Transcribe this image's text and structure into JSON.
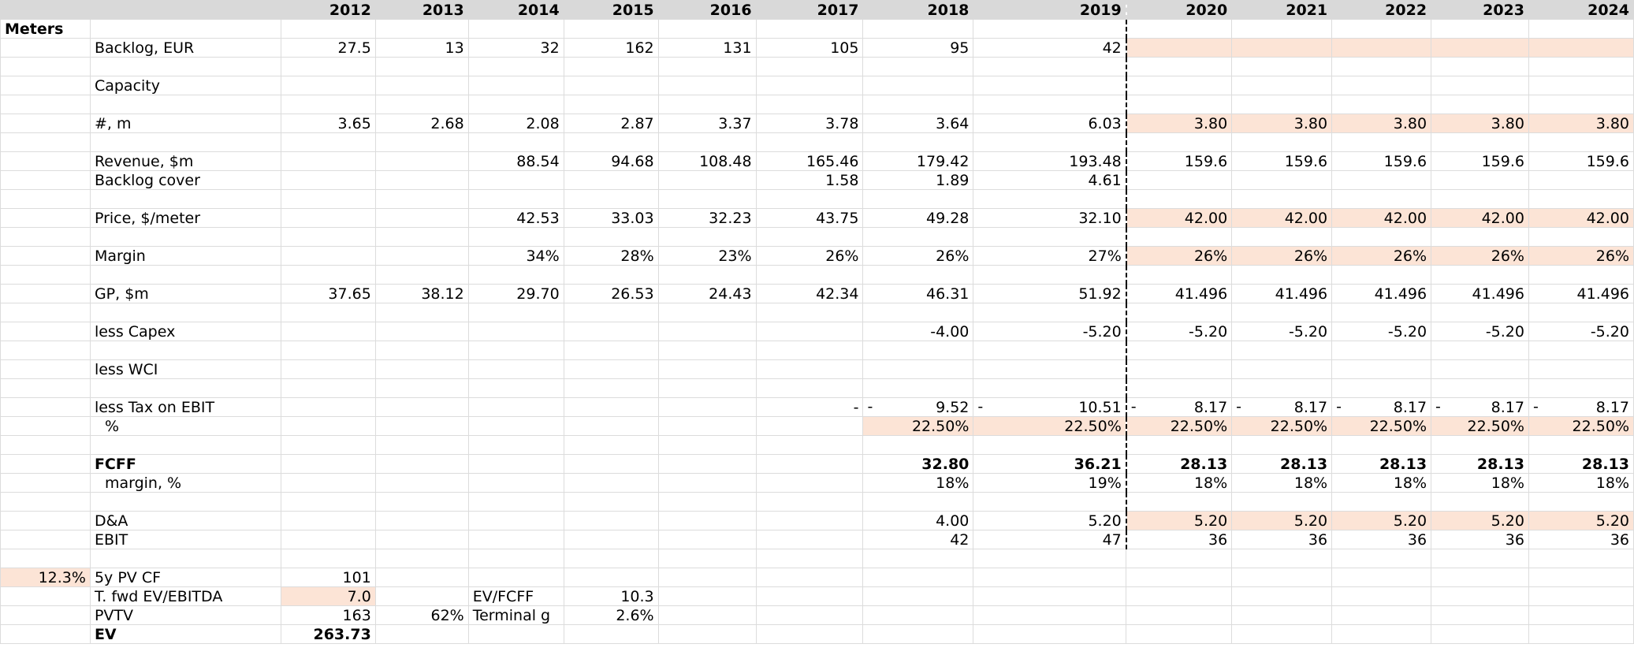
{
  "header": {
    "years": [
      "2012",
      "2013",
      "2014",
      "2015",
      "2016",
      "2017",
      "2018",
      "2019",
      "2020",
      "2021",
      "2022",
      "2023",
      "2024"
    ]
  },
  "section": {
    "meters": "Meters"
  },
  "backlog": {
    "label": "Backlog, EUR",
    "values": [
      "27.5",
      "13",
      "32",
      "162",
      "131",
      "105",
      "95",
      "42"
    ]
  },
  "capacity": {
    "label": "Capacity"
  },
  "count": {
    "label": "#, m",
    "values": [
      "3.65",
      "2.68",
      "2.08",
      "2.87",
      "3.37",
      "3.78",
      "3.64",
      "6.03",
      "3.80",
      "3.80",
      "3.80",
      "3.80",
      "3.80"
    ]
  },
  "revenue": {
    "label": "Revenue, $m",
    "values": [
      "88.54",
      "94.68",
      "108.48",
      "165.46",
      "179.42",
      "193.48",
      "159.6",
      "159.6",
      "159.6",
      "159.6",
      "159.6"
    ]
  },
  "backlog_cover": {
    "label": "Backlog cover",
    "values": [
      "1.58",
      "1.89",
      "4.61"
    ]
  },
  "price": {
    "label": "Price, $/meter",
    "values": [
      "42.53",
      "33.03",
      "32.23",
      "43.75",
      "49.28",
      "32.10",
      "42.00",
      "42.00",
      "42.00",
      "42.00",
      "42.00"
    ]
  },
  "margin": {
    "label": "Margin",
    "values": [
      "34%",
      "28%",
      "23%",
      "26%",
      "26%",
      "27%",
      "26%",
      "26%",
      "26%",
      "26%",
      "26%"
    ]
  },
  "gp": {
    "label": "GP, $m",
    "values": [
      "37.65",
      "38.12",
      "29.70",
      "26.53",
      "24.43",
      "42.34",
      "46.31",
      "51.92",
      "41.496",
      "41.496",
      "41.496",
      "41.496",
      "41.496"
    ]
  },
  "capex": {
    "label": "less Capex",
    "values": [
      "-4.00",
      "-5.20",
      "-5.20",
      "-5.20",
      "-5.20",
      "-5.20",
      "-5.20"
    ]
  },
  "wci": {
    "label": "less WCI"
  },
  "tax": {
    "label": "less Tax on EBIT",
    "dash": "-",
    "y2017": "-",
    "values": [
      "9.52",
      "10.51",
      "8.17",
      "8.17",
      "8.17",
      "8.17",
      "8.17"
    ]
  },
  "tax_pct": {
    "label": "%",
    "values": [
      "22.50%",
      "22.50%",
      "22.50%",
      "22.50%",
      "22.50%",
      "22.50%",
      "22.50%"
    ]
  },
  "fcff": {
    "label": "FCFF",
    "values": [
      "32.80",
      "36.21",
      "28.13",
      "28.13",
      "28.13",
      "28.13",
      "28.13"
    ]
  },
  "fcff_margin": {
    "label": "margin, %",
    "values": [
      "18%",
      "19%",
      "18%",
      "18%",
      "18%",
      "18%",
      "18%"
    ]
  },
  "da": {
    "label": "D&A",
    "values": [
      "4.00",
      "5.20",
      "5.20",
      "5.20",
      "5.20",
      "5.20",
      "5.20"
    ]
  },
  "ebit": {
    "label": "EBIT",
    "values": [
      "42",
      "47",
      "36",
      "36",
      "36",
      "36",
      "36"
    ]
  },
  "valuation": {
    "discount_rate": "12.3%",
    "pv_cf_label": "5y PV CF",
    "pv_cf_value": "101",
    "multiple_label": "T. fwd EV/EBITDA",
    "multiple_value": "7.0",
    "ev_fcff_label": "EV/FCFF",
    "ev_fcff_value": "10.3",
    "pvtv_label": "PVTV",
    "pvtv_value": "163",
    "pvtv_share": "62%",
    "terminal_g_label": "Terminal g",
    "terminal_g_value": "2.6%",
    "ev_label": "EV",
    "ev_value": "263.73"
  },
  "colors": {
    "header_bg": "#d9d9d9",
    "input_bg": "#fce4d6",
    "gridline": "#dcdcdc"
  }
}
